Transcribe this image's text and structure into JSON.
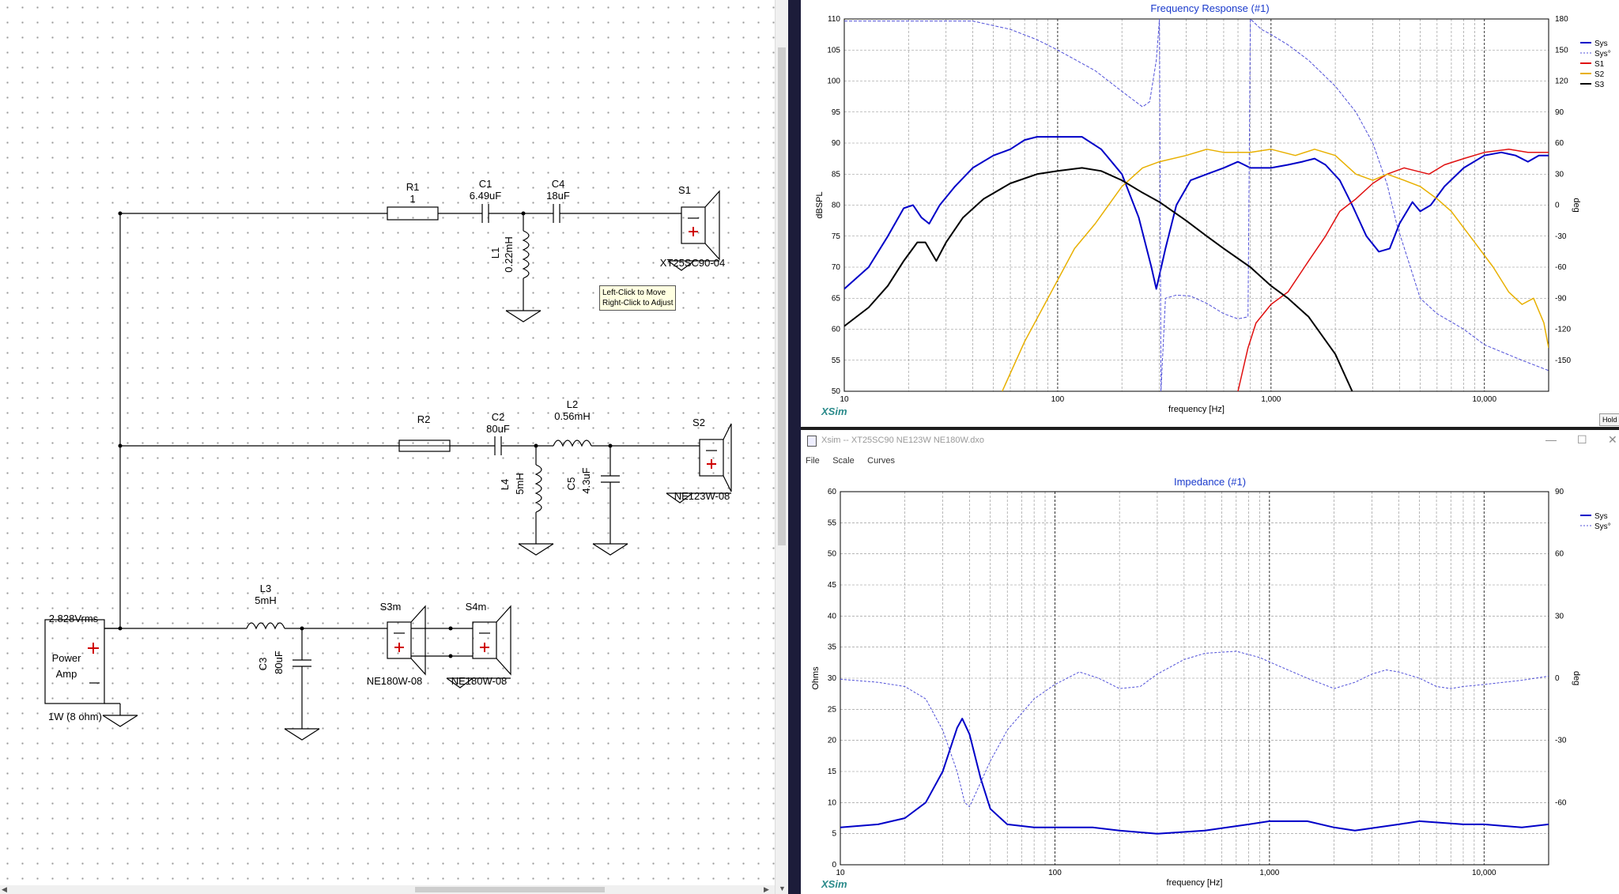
{
  "schematic": {
    "labels": {
      "R1": "R1",
      "R1_value": "1",
      "C1": "C1",
      "C1_value": "6.49uF",
      "C4": "C4",
      "C4_value": "18uF",
      "L1": "L1",
      "L1_value": "0.22mH",
      "S1": "S1",
      "S1_model": "XT25SC90-04",
      "R2": "R2",
      "C2": "C2",
      "C2_value": "80uF",
      "L2": "L2",
      "L2_value": "0.56mH",
      "L4": "L4",
      "L4_value": "5mH",
      "C5": "C5",
      "C5_value": "4.3uF",
      "S2": "S2",
      "S2_model": "NE123W-08",
      "L3": "L3",
      "L3_value": "5mH",
      "C3": "C3",
      "C3_value": "80uF",
      "S3m": "S3m",
      "S3m_model": "NE180W-08",
      "S4m": "S4m",
      "S4m_model": "NE180W-08",
      "amp_voltage": "2.828Vrms",
      "amp_name_line1": "Power",
      "amp_name_line2": "Amp",
      "amp_rating": "1W (8 ohm)"
    },
    "tooltip": {
      "line1": "Left-Click to Move",
      "line2": "Right-Click to Adjust"
    }
  },
  "freq_window": {
    "hold_label": "Hold",
    "logo": "XSim"
  },
  "imp_window": {
    "title": "Xsim -- XT25SC90 NE123W NE180W.dxo",
    "menu": [
      "File",
      "Scale",
      "Curves"
    ],
    "logo": "XSim",
    "controls": {
      "minimize": "—",
      "maximize": "☐",
      "close": "✕"
    }
  },
  "chart_data": [
    {
      "type": "line",
      "title": "Frequency Response (#1)",
      "xlabel": "frequency [Hz]",
      "ylabel": "dBSPL",
      "y2label": "deg",
      "xscale": "log",
      "xlim": [
        10,
        20000
      ],
      "ylim": [
        50,
        110
      ],
      "y2lim": [
        -180,
        180
      ],
      "xticks": [
        10,
        100,
        1000,
        10000
      ],
      "xtick_labels": [
        "10",
        "100",
        "1,000",
        "10,000"
      ],
      "yticks": [
        50,
        55,
        60,
        65,
        70,
        75,
        80,
        85,
        90,
        95,
        100,
        105,
        110
      ],
      "y2ticks": [
        -150,
        -120,
        -90,
        -60,
        -30,
        0,
        30,
        60,
        90,
        120,
        150,
        180
      ],
      "grid": true,
      "legend_position": "top-right",
      "series": [
        {
          "name": "Sys",
          "color": "#0000c8",
          "width": 2,
          "dash": "",
          "axis": "y",
          "points": [
            [
              10,
              66.5
            ],
            [
              13,
              70
            ],
            [
              16,
              75
            ],
            [
              19,
              79.5
            ],
            [
              21,
              80
            ],
            [
              23,
              78
            ],
            [
              25,
              77
            ],
            [
              28,
              80
            ],
            [
              33,
              83
            ],
            [
              40,
              86
            ],
            [
              50,
              88
            ],
            [
              60,
              89
            ],
            [
              70,
              90.5
            ],
            [
              80,
              91
            ],
            [
              100,
              91
            ],
            [
              130,
              91
            ],
            [
              160,
              89
            ],
            [
              200,
              85
            ],
            [
              240,
              78
            ],
            [
              275,
              70
            ],
            [
              290,
              66.5
            ],
            [
              320,
              73
            ],
            [
              360,
              80
            ],
            [
              420,
              84
            ],
            [
              500,
              85
            ],
            [
              600,
              86
            ],
            [
              700,
              87
            ],
            [
              800,
              86
            ],
            [
              1000,
              86
            ],
            [
              1200,
              86.5
            ],
            [
              1400,
              87
            ],
            [
              1600,
              87.5
            ],
            [
              1800,
              86.5
            ],
            [
              2100,
              84
            ],
            [
              2400,
              80
            ],
            [
              2800,
              75
            ],
            [
              3200,
              72.5
            ],
            [
              3600,
              73
            ],
            [
              4000,
              77
            ],
            [
              4600,
              80.5
            ],
            [
              5000,
              79
            ],
            [
              5600,
              80
            ],
            [
              6500,
              83
            ],
            [
              8000,
              86
            ],
            [
              10000,
              88
            ],
            [
              12000,
              88.5
            ],
            [
              14000,
              88
            ],
            [
              16000,
              87
            ],
            [
              18000,
              88
            ],
            [
              20000,
              88
            ]
          ]
        },
        {
          "name": "Sys°",
          "color": "#5050d8",
          "width": 1,
          "dash": "4,2",
          "axis": "y2",
          "points": [
            [
              10,
              178
            ],
            [
              20,
              178
            ],
            [
              40,
              178
            ],
            [
              60,
              170
            ],
            [
              80,
              160
            ],
            [
              100,
              150
            ],
            [
              150,
              130
            ],
            [
              200,
              110
            ],
            [
              250,
              95
            ],
            [
              270,
              100
            ],
            [
              290,
              140
            ],
            [
              300,
              180
            ],
            [
              305,
              -180
            ],
            [
              320,
              -90
            ],
            [
              360,
              -87
            ],
            [
              420,
              -88
            ],
            [
              500,
              -95
            ],
            [
              600,
              -105
            ],
            [
              700,
              -110
            ],
            [
              780,
              -108
            ],
            [
              800,
              180
            ],
            [
              900,
              170
            ],
            [
              1000,
              165
            ],
            [
              1200,
              155
            ],
            [
              1500,
              140
            ],
            [
              2000,
              115
            ],
            [
              2500,
              90
            ],
            [
              3000,
              60
            ],
            [
              3500,
              20
            ],
            [
              3900,
              -20
            ],
            [
              4500,
              -60
            ],
            [
              5000,
              -90
            ],
            [
              6000,
              -105
            ],
            [
              8000,
              -120
            ],
            [
              10000,
              -135
            ],
            [
              15000,
              -150
            ],
            [
              20000,
              -160
            ]
          ]
        },
        {
          "name": "S1",
          "color": "#e01010",
          "width": 1.5,
          "dash": "",
          "axis": "y",
          "points": [
            [
              700,
              50
            ],
            [
              780,
              57
            ],
            [
              850,
              61
            ],
            [
              1000,
              64
            ],
            [
              1200,
              66
            ],
            [
              1500,
              71
            ],
            [
              1800,
              75
            ],
            [
              2100,
              79
            ],
            [
              2500,
              81
            ],
            [
              3000,
              83.5
            ],
            [
              3500,
              85
            ],
            [
              4200,
              86
            ],
            [
              4800,
              85.5
            ],
            [
              5500,
              85
            ],
            [
              6500,
              86.5
            ],
            [
              8000,
              87.5
            ],
            [
              10000,
              88.5
            ],
            [
              13000,
              89
            ],
            [
              16000,
              88.5
            ],
            [
              20000,
              88.5
            ]
          ]
        },
        {
          "name": "S2",
          "color": "#e8b000",
          "width": 1.5,
          "dash": "",
          "axis": "y",
          "points": [
            [
              55,
              50
            ],
            [
              70,
              58
            ],
            [
              90,
              65
            ],
            [
              120,
              73
            ],
            [
              150,
              77
            ],
            [
              200,
              83
            ],
            [
              250,
              86
            ],
            [
              300,
              87
            ],
            [
              400,
              88
            ],
            [
              500,
              89
            ],
            [
              600,
              88.5
            ],
            [
              800,
              88.5
            ],
            [
              1000,
              89
            ],
            [
              1300,
              88
            ],
            [
              1600,
              89
            ],
            [
              2000,
              88
            ],
            [
              2500,
              85
            ],
            [
              3000,
              84
            ],
            [
              3500,
              85
            ],
            [
              4200,
              84
            ],
            [
              5000,
              83
            ],
            [
              6000,
              81
            ],
            [
              7000,
              79
            ],
            [
              9000,
              74
            ],
            [
              11000,
              70
            ],
            [
              13000,
              66
            ],
            [
              15000,
              64
            ],
            [
              17000,
              65
            ],
            [
              19000,
              61
            ],
            [
              20000,
              57
            ]
          ]
        },
        {
          "name": "S3",
          "color": "#000000",
          "width": 2,
          "dash": "",
          "axis": "y",
          "points": [
            [
              10,
              60.5
            ],
            [
              13,
              63.5
            ],
            [
              16,
              67
            ],
            [
              19,
              71
            ],
            [
              22,
              74
            ],
            [
              24,
              74
            ],
            [
              27,
              71
            ],
            [
              30,
              74
            ],
            [
              36,
              78
            ],
            [
              45,
              81
            ],
            [
              60,
              83.5
            ],
            [
              80,
              85
            ],
            [
              100,
              85.5
            ],
            [
              130,
              86
            ],
            [
              160,
              85.5
            ],
            [
              200,
              84
            ],
            [
              250,
              82
            ],
            [
              300,
              80.5
            ],
            [
              400,
              77.5
            ],
            [
              500,
              75
            ],
            [
              600,
              73
            ],
            [
              800,
              70
            ],
            [
              1000,
              67
            ],
            [
              1200,
              65
            ],
            [
              1500,
              62
            ],
            [
              2000,
              56
            ],
            [
              2400,
              50
            ]
          ]
        }
      ]
    },
    {
      "type": "line",
      "title": "Impedance (#1)",
      "xlabel": "frequency [Hz]",
      "ylabel": "Ohms",
      "y2label": "deg",
      "xscale": "log",
      "xlim": [
        10,
        20000
      ],
      "ylim": [
        0,
        60
      ],
      "y2lim": [
        -90,
        90
      ],
      "xticks": [
        10,
        100,
        1000,
        10000
      ],
      "xtick_labels": [
        "10",
        "100",
        "1,000",
        "10,000"
      ],
      "yticks": [
        0,
        5,
        10,
        15,
        20,
        25,
        30,
        35,
        40,
        45,
        50,
        55,
        60
      ],
      "y2ticks": [
        -60,
        -30,
        0,
        30,
        60,
        90
      ],
      "y2tick_labels": [
        "-60",
        "-30",
        "0",
        "30",
        "60",
        "90"
      ],
      "grid": true,
      "legend_position": "top-right",
      "series": [
        {
          "name": "Sys",
          "color": "#0000c8",
          "width": 2,
          "dash": "",
          "axis": "y",
          "points": [
            [
              10,
              6
            ],
            [
              15,
              6.5
            ],
            [
              20,
              7.5
            ],
            [
              25,
              10
            ],
            [
              30,
              15
            ],
            [
              35,
              22
            ],
            [
              37,
              23.5
            ],
            [
              40,
              21
            ],
            [
              45,
              14
            ],
            [
              50,
              9
            ],
            [
              60,
              6.5
            ],
            [
              80,
              6
            ],
            [
              100,
              6
            ],
            [
              150,
              6
            ],
            [
              200,
              5.5
            ],
            [
              300,
              5
            ],
            [
              500,
              5.5
            ],
            [
              800,
              6.5
            ],
            [
              1000,
              7
            ],
            [
              1500,
              7
            ],
            [
              2000,
              6
            ],
            [
              2500,
              5.5
            ],
            [
              4000,
              6.5
            ],
            [
              5000,
              7
            ],
            [
              8000,
              6.5
            ],
            [
              10000,
              6.5
            ],
            [
              15000,
              6
            ],
            [
              20000,
              6.5
            ]
          ]
        },
        {
          "name": "Sys°",
          "color": "#5050d8",
          "width": 1,
          "dash": "3,2",
          "axis": "y2",
          "points": [
            [
              10,
              -0.5
            ],
            [
              15,
              -2
            ],
            [
              20,
              -4
            ],
            [
              25,
              -10
            ],
            [
              30,
              -25
            ],
            [
              35,
              -45
            ],
            [
              38,
              -60
            ],
            [
              40,
              -62
            ],
            [
              43,
              -55
            ],
            [
              50,
              -40
            ],
            [
              60,
              -25
            ],
            [
              80,
              -10
            ],
            [
              100,
              -3
            ],
            [
              130,
              3
            ],
            [
              160,
              0
            ],
            [
              200,
              -5
            ],
            [
              250,
              -4
            ],
            [
              300,
              2
            ],
            [
              400,
              9
            ],
            [
              500,
              12
            ],
            [
              700,
              13
            ],
            [
              900,
              10
            ],
            [
              1100,
              6
            ],
            [
              1500,
              0
            ],
            [
              2000,
              -5
            ],
            [
              2500,
              -2
            ],
            [
              3000,
              2
            ],
            [
              3500,
              4
            ],
            [
              4000,
              3
            ],
            [
              5000,
              0
            ],
            [
              6000,
              -4
            ],
            [
              7000,
              -5
            ],
            [
              8000,
              -4
            ],
            [
              10000,
              -3
            ],
            [
              15000,
              -1
            ],
            [
              20000,
              1
            ]
          ]
        }
      ]
    }
  ]
}
